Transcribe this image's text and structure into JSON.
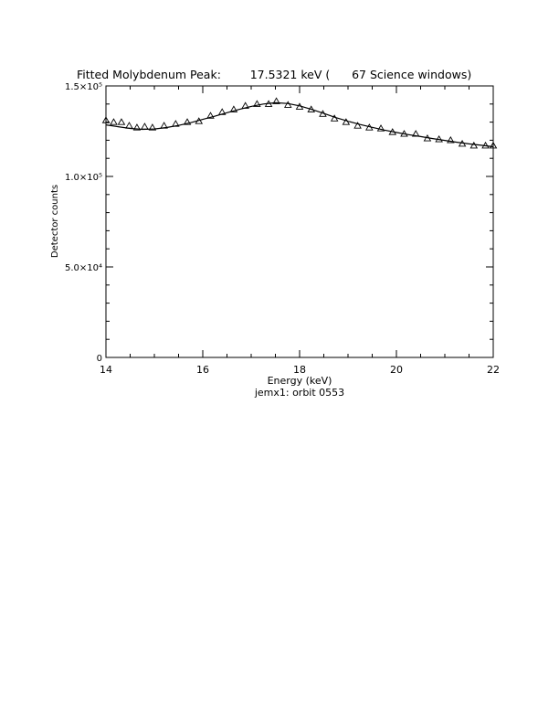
{
  "chart_data": {
    "type": "scatter",
    "title": "Fitted Molybdenum Peak:        17.5321 keV (      67 Science windows)",
    "xlabel": "Energy (keV)",
    "subtitle": "jemx1: orbit 0553",
    "ylabel": "Detector counts",
    "xlim": [
      14,
      22
    ],
    "ylim": [
      0,
      150000
    ],
    "x_ticks": [
      14,
      16,
      18,
      20,
      22
    ],
    "x_tick_labels": [
      "14",
      "16",
      "18",
      "20",
      "22"
    ],
    "y_ticks": [
      0,
      50000,
      100000,
      150000
    ],
    "y_tick_labels": [
      "0",
      "5.0×10⁴",
      "1.0×10⁵",
      "1.5×10⁵"
    ],
    "grid": false,
    "series": [
      {
        "marker": "triangle",
        "x": [
          14.0,
          14.16,
          14.32,
          14.48,
          14.64,
          14.8,
          14.96,
          15.2,
          15.44,
          15.68,
          15.92,
          16.16,
          16.4,
          16.64,
          16.88,
          17.12,
          17.36,
          17.52,
          17.76,
          18.0,
          18.24,
          18.48,
          18.72,
          18.96,
          19.2,
          19.44,
          19.68,
          19.92,
          20.16,
          20.4,
          20.64,
          20.88,
          21.12,
          21.36,
          21.6,
          21.84,
          22.0
        ],
        "y": [
          131000,
          130000,
          130000,
          128000,
          127000,
          127500,
          127000,
          128000,
          129000,
          130000,
          130500,
          133500,
          135500,
          137000,
          139000,
          140000,
          140000,
          141500,
          139500,
          138500,
          137000,
          134500,
          132000,
          130000,
          128000,
          127000,
          126500,
          124500,
          123500,
          123500,
          121000,
          120500,
          120000,
          118000,
          117000,
          117000,
          117000
        ]
      },
      {
        "style": "line",
        "x": [
          14.0,
          14.25,
          14.5,
          14.75,
          15.0,
          15.25,
          15.5,
          15.75,
          16.0,
          16.25,
          16.5,
          16.75,
          17.0,
          17.25,
          17.5,
          17.75,
          18.0,
          18.25,
          18.5,
          18.75,
          19.0,
          19.25,
          19.5,
          19.75,
          20.0,
          20.25,
          20.5,
          20.75,
          21.0,
          21.25,
          21.5,
          21.75,
          22.0
        ],
        "y": [
          128500,
          127500,
          126500,
          126000,
          126200,
          127000,
          128200,
          129700,
          131500,
          133300,
          135200,
          137000,
          138700,
          140000,
          140700,
          140300,
          139000,
          137000,
          134800,
          132500,
          130500,
          128700,
          127100,
          125600,
          124300,
          123100,
          122000,
          120900,
          119900,
          118900,
          118000,
          117200,
          116400
        ]
      }
    ]
  }
}
